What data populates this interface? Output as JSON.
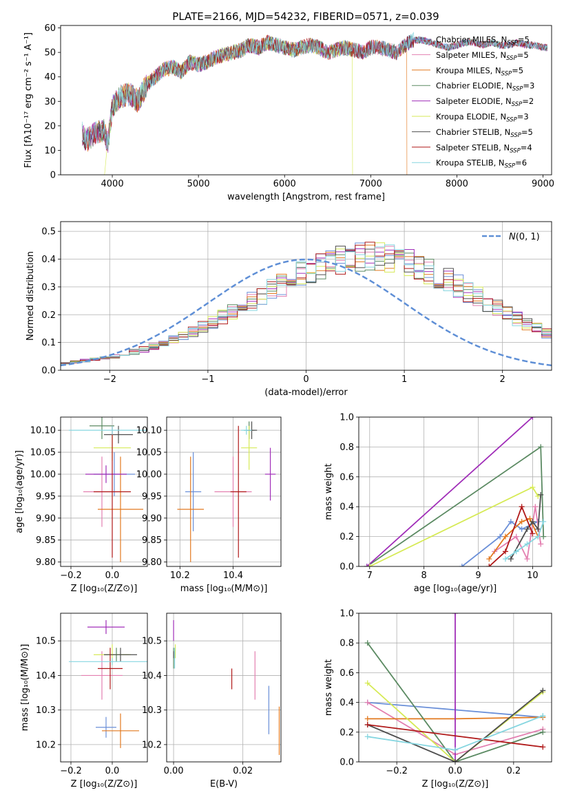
{
  "figure": {
    "title": "PLATE=2166, MJD=54232, FIBERID=0571, z=0.039"
  },
  "models": [
    {
      "name": "Chabrier MILES, N$_{SSP}$=5",
      "label": "Chabrier MILES, N",
      "sub": "SSP",
      "tail": "=5",
      "color": "#6a8fd8"
    },
    {
      "name": "Salpeter MILES, N$_{SSP}$=5",
      "label": "Salpeter MILES, N",
      "sub": "SSP",
      "tail": "=5",
      "color": "#e37fb0"
    },
    {
      "name": "Kroupa MILES, N$_{SSP}$=5",
      "label": "Kroupa MILES, N",
      "sub": "SSP",
      "tail": "=5",
      "color": "#e2781e"
    },
    {
      "name": "Chabrier ELODIE, N$_{SSP}$=3",
      "label": "Chabrier ELODIE, N",
      "sub": "SSP",
      "tail": "=3",
      "color": "#5b8a62"
    },
    {
      "name": "Salpeter ELODIE, N$_{SSP}$=2",
      "label": "Salpeter ELODIE, N",
      "sub": "SSP",
      "tail": "=2",
      "color": "#a02db8"
    },
    {
      "name": "Kroupa ELODIE, N$_{SSP}$=3",
      "label": "Kroupa ELODIE, N",
      "sub": "SSP",
      "tail": "=3",
      "color": "#d6ea55"
    },
    {
      "name": "Chabrier STELIB, N$_{SSP}$=5",
      "label": "Chabrier STELIB, N",
      "sub": "SSP",
      "tail": "=5",
      "color": "#4d4d4d"
    },
    {
      "name": "Salpeter STELIB, N$_{SSP}$=4",
      "label": "Salpeter STELIB, N",
      "sub": "SSP",
      "tail": "=4",
      "color": "#b01919"
    },
    {
      "name": "Kroupa STELIB, N$_{SSP}$=6",
      "label": "Kroupa STELIB, N",
      "sub": "SSP",
      "tail": "=6",
      "color": "#86d6e0"
    }
  ],
  "chart_data": [
    {
      "id": "spectrum",
      "type": "line",
      "xlabel": "wavelength [Angstrom, rest frame]",
      "ylabel": "Flux [fλ10⁻¹⁷ erg cm⁻² s⁻¹ A⁻¹]",
      "xlim": [
        3400,
        9100
      ],
      "ylim": [
        0,
        61
      ],
      "xticks": [
        4000,
        5000,
        6000,
        7000,
        8000,
        9000
      ],
      "yticks": [
        0,
        10,
        20,
        30,
        40,
        50,
        60
      ],
      "grid": false,
      "legend": "right",
      "spectrum_x": [
        3650,
        3700,
        3800,
        3900,
        3950,
        4000,
        4100,
        4200,
        4300,
        4400,
        4500,
        4600,
        4700,
        4800,
        4900,
        5000,
        5100,
        5200,
        5300,
        5400,
        5500,
        5600,
        5700,
        5800,
        5900,
        6000,
        6100,
        6200,
        6300,
        6400,
        6500,
        6600,
        6700,
        6800,
        6900,
        7000,
        7100,
        7200,
        7300,
        7400,
        7500,
        7600,
        7700,
        7800,
        7900,
        8000,
        8100,
        8200,
        8300,
        8400,
        8500,
        8600,
        8700,
        8800,
        8900,
        9000,
        9050
      ],
      "spectrum_y": [
        17,
        14,
        17,
        18,
        13,
        28,
        32,
        33,
        30,
        37,
        40,
        43,
        44,
        42,
        46,
        45,
        46,
        48,
        49,
        50,
        51,
        53,
        52,
        54,
        53,
        52,
        51,
        52,
        53,
        52,
        50,
        51,
        52,
        51,
        50,
        52,
        52,
        51,
        50,
        53,
        55,
        55,
        54,
        53,
        52,
        53,
        54,
        54,
        53,
        54,
        53,
        53,
        54,
        53,
        53,
        52,
        52
      ],
      "dropouts": [
        {
          "series": "Kroupa ELODIE, N$_{SSP}$=3",
          "x_start": 3910,
          "x_end": 6790
        },
        {
          "series": "Kroupa MILES, N$_{SSP}$=5",
          "x_start": 3650,
          "x_end": 7420
        }
      ]
    },
    {
      "id": "residuals",
      "type": "histogram",
      "xlabel": "(data-model)/error",
      "ylabel": "Normed distribution",
      "xlim": [
        -2.5,
        2.5
      ],
      "ylim": [
        0,
        0.535
      ],
      "xticks": [
        -2,
        -1,
        0,
        1,
        2
      ],
      "yticks": [
        0.0,
        0.1,
        0.2,
        0.3,
        0.4,
        0.5
      ],
      "grid": true,
      "legend": "top-right",
      "reference_curve": {
        "name": "N(0,1)",
        "label_main": "𝒩",
        "label_tail": "(0, 1)",
        "mean": 0,
        "sigma": 1,
        "color": "#5f8fd6"
      },
      "bin_width": 0.1,
      "bin_start": -2.5,
      "envelope": [
        0.025,
        0.03,
        0.035,
        0.04,
        0.045,
        0.05,
        0.058,
        0.066,
        0.075,
        0.085,
        0.097,
        0.11,
        0.124,
        0.14,
        0.155,
        0.172,
        0.19,
        0.208,
        0.228,
        0.248,
        0.268,
        0.288,
        0.308,
        0.328,
        0.345,
        0.36,
        0.375,
        0.388,
        0.397,
        0.404,
        0.41,
        0.41,
        0.406,
        0.4,
        0.392,
        0.382,
        0.37,
        0.355,
        0.34,
        0.322,
        0.303,
        0.283,
        0.263,
        0.243,
        0.222,
        0.203,
        0.185,
        0.167,
        0.15,
        0.134,
        0.12,
        0.106,
        0.094,
        0.083,
        0.073,
        0.064,
        0.056,
        0.049,
        0.043,
        0.038,
        0.033,
        0.029,
        0.026,
        0.023,
        0.021,
        0.019,
        0.017,
        0.015,
        0.014,
        0.013
      ]
    },
    {
      "id": "age-vs-Z",
      "type": "errorbar",
      "xlabel": "Z [log₁₀(Z/Z⊙)]",
      "ylabel": "age  [log₁₀(age/yr)]",
      "xlim": [
        -0.25,
        0.17
      ],
      "ylim": [
        9.79,
        10.13
      ],
      "xticks": [
        -0.2,
        0.0
      ],
      "yticks": [
        9.8,
        9.85,
        9.9,
        9.95,
        10.0,
        10.05,
        10.1
      ],
      "grid": true,
      "points": [
        {
          "x": 0.01,
          "y": 10.0,
          "xerr": 0.1,
          "yerr": 0.05
        },
        {
          "x": -0.05,
          "y": 9.96,
          "xerr": 0.09,
          "yerr": 0.08
        },
        {
          "x": 0.04,
          "y": 9.92,
          "xerr": 0.11,
          "yerr": 0.12
        },
        {
          "x": -0.05,
          "y": 10.11,
          "xerr": 0.06,
          "yerr": 0.03
        },
        {
          "x": -0.03,
          "y": 10.0,
          "xerr": 0.1,
          "yerr": 0.02
        },
        {
          "x": 0.0,
          "y": 10.06,
          "xerr": 0.09,
          "yerr": 0.03
        },
        {
          "x": 0.03,
          "y": 10.09,
          "xerr": 0.07,
          "yerr": 0.02
        },
        {
          "x": 0.0,
          "y": 9.96,
          "xerr": 0.09,
          "yerr": 0.15
        },
        {
          "x": 0.0,
          "y": 10.1,
          "xerr": 0.21,
          "yerr": 0.01
        }
      ]
    },
    {
      "id": "age-vs-mass",
      "type": "errorbar",
      "xlabel": "mass [log₁₀(M/M⊙)]",
      "ylabel": "",
      "xlim": [
        10.15,
        10.58
      ],
      "ylim": [
        9.79,
        10.13
      ],
      "xticks": [
        10.2,
        10.4
      ],
      "yticks": [
        9.8,
        9.85,
        9.9,
        9.95,
        10.0,
        10.05,
        10.1
      ],
      "grid": true,
      "points": [
        {
          "x": 10.25,
          "y": 9.96,
          "xerr": 0.03,
          "yerr": 0.09
        },
        {
          "x": 10.4,
          "y": 9.96,
          "xerr": 0.07,
          "yerr": 0.08
        },
        {
          "x": 10.24,
          "y": 9.92,
          "xerr": 0.05,
          "yerr": 0.12
        },
        {
          "x": 10.46,
          "y": 10.1,
          "xerr": 0.02,
          "yerr": 0.02
        },
        {
          "x": 10.54,
          "y": 10.0,
          "xerr": 0.02,
          "yerr": 0.06
        },
        {
          "x": 10.46,
          "y": 10.06,
          "xerr": 0.03,
          "yerr": 0.05
        },
        {
          "x": 10.47,
          "y": 10.1,
          "xerr": 0.02,
          "yerr": 0.02
        },
        {
          "x": 10.42,
          "y": 9.96,
          "xerr": 0.03,
          "yerr": 0.15
        },
        {
          "x": 10.45,
          "y": 10.1,
          "xerr": 0.02,
          "yerr": 0.01
        }
      ]
    },
    {
      "id": "weight-vs-age",
      "type": "line",
      "xlabel": "age  [log₁₀(age/yr)]",
      "ylabel": "mass weight",
      "xlim": [
        6.8,
        10.35
      ],
      "ylim": [
        0,
        1.0
      ],
      "xticks": [
        7,
        8,
        9,
        10
      ],
      "yticks": [
        0.0,
        0.2,
        0.4,
        0.6,
        0.8,
        1.0
      ],
      "grid": true,
      "series": [
        {
          "x": [
            8.7,
            9.4,
            9.6,
            9.8,
            10.1
          ],
          "y": [
            0.0,
            0.2,
            0.3,
            0.25,
            0.3
          ]
        },
        {
          "x": [
            9.3,
            9.7,
            9.9,
            10.05,
            10.15
          ],
          "y": [
            0.1,
            0.2,
            0.05,
            0.4,
            0.15
          ]
        },
        {
          "x": [
            9.2,
            9.5,
            9.8,
            9.95,
            10.1
          ],
          "y": [
            0.05,
            0.2,
            0.3,
            0.32,
            0.2
          ]
        },
        {
          "x": [
            6.95,
            10.15,
            10.2
          ],
          "y": [
            0.0,
            0.8,
            0.2
          ]
        },
        {
          "x": [
            6.95,
            10.0
          ],
          "y": [
            0.0,
            1.0
          ]
        },
        {
          "x": [
            7.0,
            10.0,
            10.1
          ],
          "y": [
            0.0,
            0.53,
            0.47
          ]
        },
        {
          "x": [
            9.6,
            9.9,
            10.0,
            10.1,
            10.15
          ],
          "y": [
            0.05,
            0.25,
            0.3,
            0.25,
            0.48
          ]
        },
        {
          "x": [
            9.2,
            9.5,
            9.8,
            10.0
          ],
          "y": [
            0.0,
            0.1,
            0.4,
            0.22
          ]
        },
        {
          "x": [
            9.5,
            9.7,
            9.9,
            10.1,
            10.2
          ],
          "y": [
            0.05,
            0.1,
            0.15,
            0.2,
            0.3
          ]
        }
      ]
    },
    {
      "id": "mass-vs-Z",
      "type": "errorbar",
      "xlabel": "Z [log₁₀(Z/Z⊙)]",
      "ylabel": "mass [log₁₀(M/M⊙)]",
      "xlim": [
        -0.25,
        0.17
      ],
      "ylim": [
        10.15,
        10.58
      ],
      "xticks": [
        -0.2,
        0.0
      ],
      "yticks": [
        10.2,
        10.3,
        10.4,
        10.5
      ],
      "grid": true,
      "points": [
        {
          "x": -0.03,
          "y": 10.25,
          "xerr": 0.05,
          "yerr": 0.03
        },
        {
          "x": -0.05,
          "y": 10.4,
          "xerr": 0.1,
          "yerr": 0.07
        },
        {
          "x": 0.04,
          "y": 10.24,
          "xerr": 0.09,
          "yerr": 0.05
        },
        {
          "x": 0.02,
          "y": 10.46,
          "xerr": 0.06,
          "yerr": 0.02
        },
        {
          "x": -0.03,
          "y": 10.54,
          "xerr": 0.09,
          "yerr": 0.02
        },
        {
          "x": 0.0,
          "y": 10.46,
          "xerr": 0.09,
          "yerr": 0.03
        },
        {
          "x": 0.04,
          "y": 10.46,
          "xerr": 0.08,
          "yerr": 0.02
        },
        {
          "x": -0.01,
          "y": 10.42,
          "xerr": 0.06,
          "yerr": 0.06
        },
        {
          "x": 0.0,
          "y": 10.44,
          "xerr": 0.21,
          "yerr": 0.01
        }
      ]
    },
    {
      "id": "mass-vs-EBV",
      "type": "errorbar",
      "xlabel": "E(B-V)",
      "ylabel": "",
      "xlim": [
        -0.002,
        0.031
      ],
      "ylim": [
        10.15,
        10.58
      ],
      "xticks": [
        0.0,
        0.02
      ],
      "yticks": [
        10.2,
        10.3,
        10.4,
        10.5
      ],
      "grid": true,
      "points": [
        {
          "x": 0.0275,
          "y": 10.3,
          "xerr": 0.0,
          "yerr": 0.07
        },
        {
          "x": 0.0235,
          "y": 10.4,
          "xerr": 0.0,
          "yerr": 0.07
        },
        {
          "x": 0.0305,
          "y": 10.24,
          "xerr": 0.0,
          "yerr": 0.07
        },
        {
          "x": 0.0,
          "y": 10.45,
          "xerr": 0.0,
          "yerr": 0.03
        },
        {
          "x": 0.0,
          "y": 10.53,
          "xerr": 0.0,
          "yerr": 0.03
        },
        {
          "x": 0.0005,
          "y": 10.47,
          "xerr": 0.0,
          "yerr": 0.02
        },
        {
          "x": 0.0,
          "y": 10.46,
          "xerr": 0.0,
          "yerr": 0.01
        },
        {
          "x": 0.0168,
          "y": 10.39,
          "xerr": 0.0,
          "yerr": 0.03
        },
        {
          "x": 0.0003,
          "y": 10.45,
          "xerr": 0.0,
          "yerr": 0.03
        }
      ]
    },
    {
      "id": "weight-vs-Z",
      "type": "line",
      "xlabel": "Z [log₁₀(Z/Z⊙)]",
      "ylabel": "mass weight",
      "xlim": [
        -0.33,
        0.33
      ],
      "ylim": [
        0,
        1.0
      ],
      "xticks": [
        -0.2,
        0.0,
        0.2
      ],
      "yticks": [
        0.0,
        0.2,
        0.4,
        0.6,
        0.8,
        1.0
      ],
      "grid": true,
      "series": [
        {
          "x": [
            -0.3,
            0.0,
            0.3
          ],
          "y": [
            0.4,
            0.35,
            0.3
          ]
        },
        {
          "x": [
            -0.3,
            0.0,
            0.3
          ],
          "y": [
            0.4,
            0.05,
            0.22
          ]
        },
        {
          "x": [
            -0.3,
            0.0,
            0.3
          ],
          "y": [
            0.29,
            0.29,
            0.3
          ]
        },
        {
          "x": [
            -0.3,
            0.0,
            0.3
          ],
          "y": [
            0.8,
            0.0,
            0.2
          ]
        },
        {
          "x": [
            0.0,
            0.0
          ],
          "y": [
            0.0,
            1.0
          ]
        },
        {
          "x": [
            -0.3,
            0.0,
            0.3
          ],
          "y": [
            0.53,
            0.0,
            0.47
          ]
        },
        {
          "x": [
            -0.3,
            0.0,
            0.3
          ],
          "y": [
            0.25,
            0.0,
            0.48
          ]
        },
        {
          "x": [
            -0.3,
            0.3
          ],
          "y": [
            0.25,
            0.1
          ]
        },
        {
          "x": [
            -0.3,
            0.0,
            0.3
          ],
          "y": [
            0.17,
            0.08,
            0.31
          ]
        }
      ]
    }
  ]
}
